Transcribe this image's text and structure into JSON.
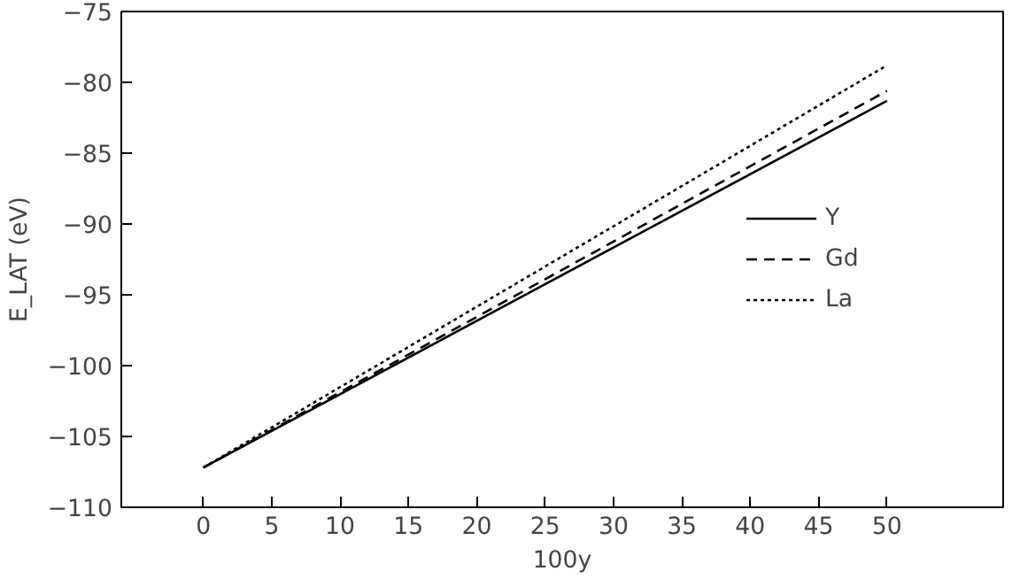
{
  "chart_data": {
    "type": "line",
    "xlabel": "100y",
    "ylabel": "E_LAT (eV)",
    "xlim": [
      -6,
      58.5
    ],
    "ylim": [
      -110,
      -75
    ],
    "xticks": [
      0,
      5,
      10,
      15,
      20,
      25,
      30,
      35,
      40,
      45,
      50
    ],
    "yticks": [
      -110,
      -105,
      -100,
      -95,
      -90,
      -85,
      -80,
      -75
    ],
    "x": [
      0,
      50
    ],
    "series": [
      {
        "name": "Y",
        "color": "#000000",
        "line_style": "solid",
        "values": [
          -107.2,
          -81.3
        ]
      },
      {
        "name": "Gd",
        "color": "#000000",
        "line_style": "dashed",
        "values": [
          -107.2,
          -80.6
        ]
      },
      {
        "name": "La",
        "color": "#000000",
        "line_style": "dotted",
        "values": [
          -107.2,
          -78.8
        ]
      }
    ],
    "grid": false,
    "legend": "right",
    "marker": "none"
  }
}
